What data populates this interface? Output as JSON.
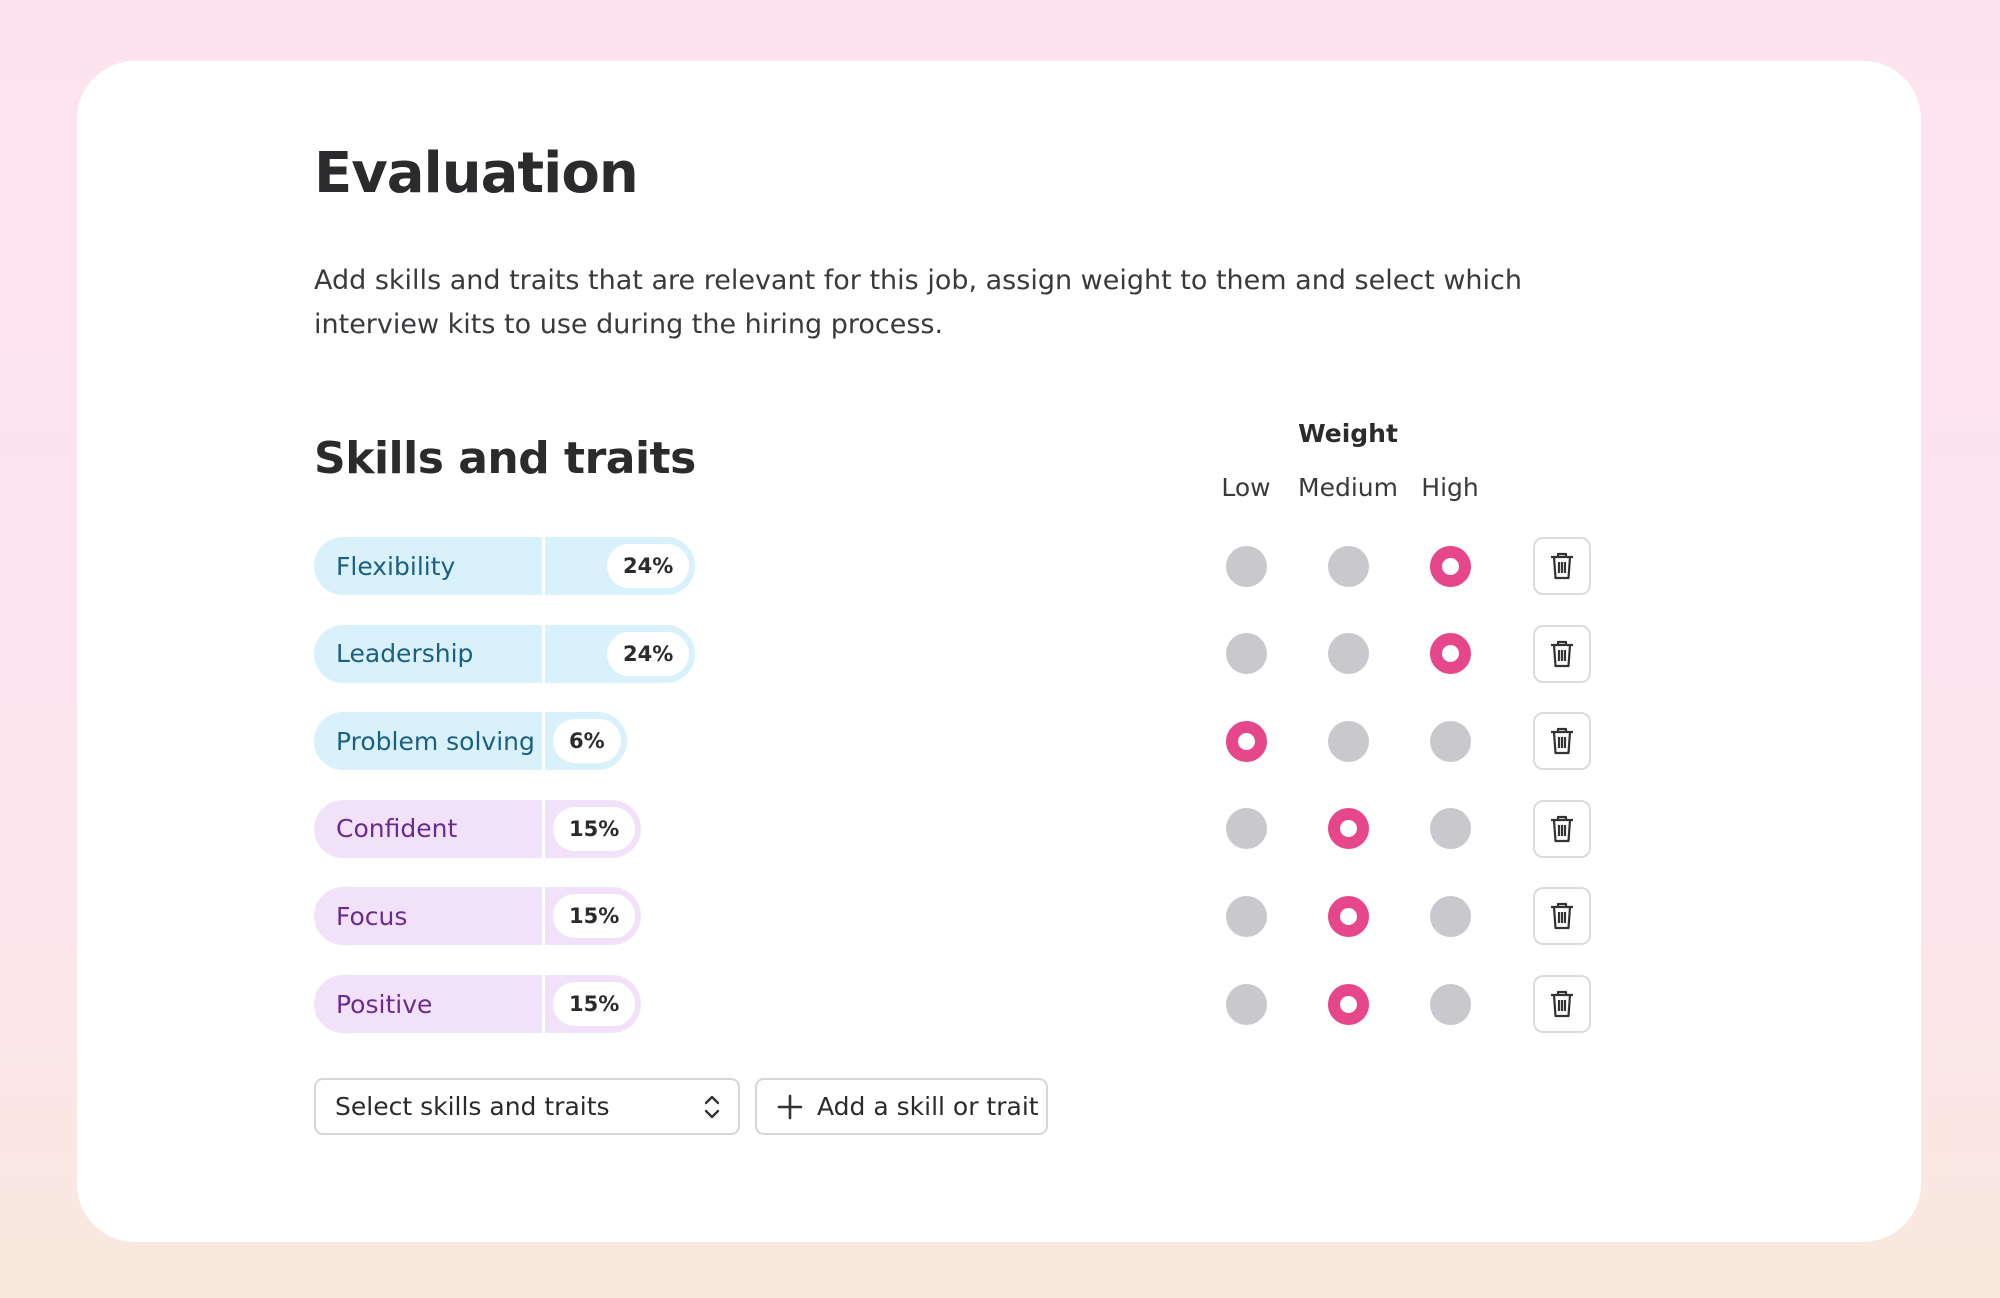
{
  "header": {
    "title": "Evaluation",
    "description": "Add skills and traits that are relevant for this job, assign weight to them and select which interview kits to use during the hiring process."
  },
  "skills_section": {
    "title": "Skills and traits",
    "weight_label": "Weight",
    "levels": [
      "Low",
      "Medium",
      "High"
    ],
    "items": [
      {
        "name": "Flexibility",
        "percent": "24%",
        "weight": "High",
        "fill": "#d8f1fb",
        "text_color": "#1c5f82"
      },
      {
        "name": "Leadership",
        "percent": "24%",
        "weight": "High",
        "fill": "#d8f1fb",
        "text_color": "#1c5f82"
      },
      {
        "name": "Problem solving",
        "percent": "6%",
        "weight": "Low",
        "fill": "#d8f1fb",
        "text_color": "#1c5f82"
      },
      {
        "name": "Confident",
        "percent": "15%",
        "weight": "Medium",
        "fill": "#f1e2fa",
        "text_color": "#6a2b90"
      },
      {
        "name": "Focus",
        "percent": "15%",
        "weight": "Medium",
        "fill": "#f1e2fa",
        "text_color": "#6a2b90"
      },
      {
        "name": "Positive",
        "percent": "15%",
        "weight": "Medium",
        "fill": "#f1e2fa",
        "text_color": "#6a2b90"
      }
    ],
    "select_placeholder": "Select skills and traits",
    "add_button": "Add a skill or trait"
  }
}
